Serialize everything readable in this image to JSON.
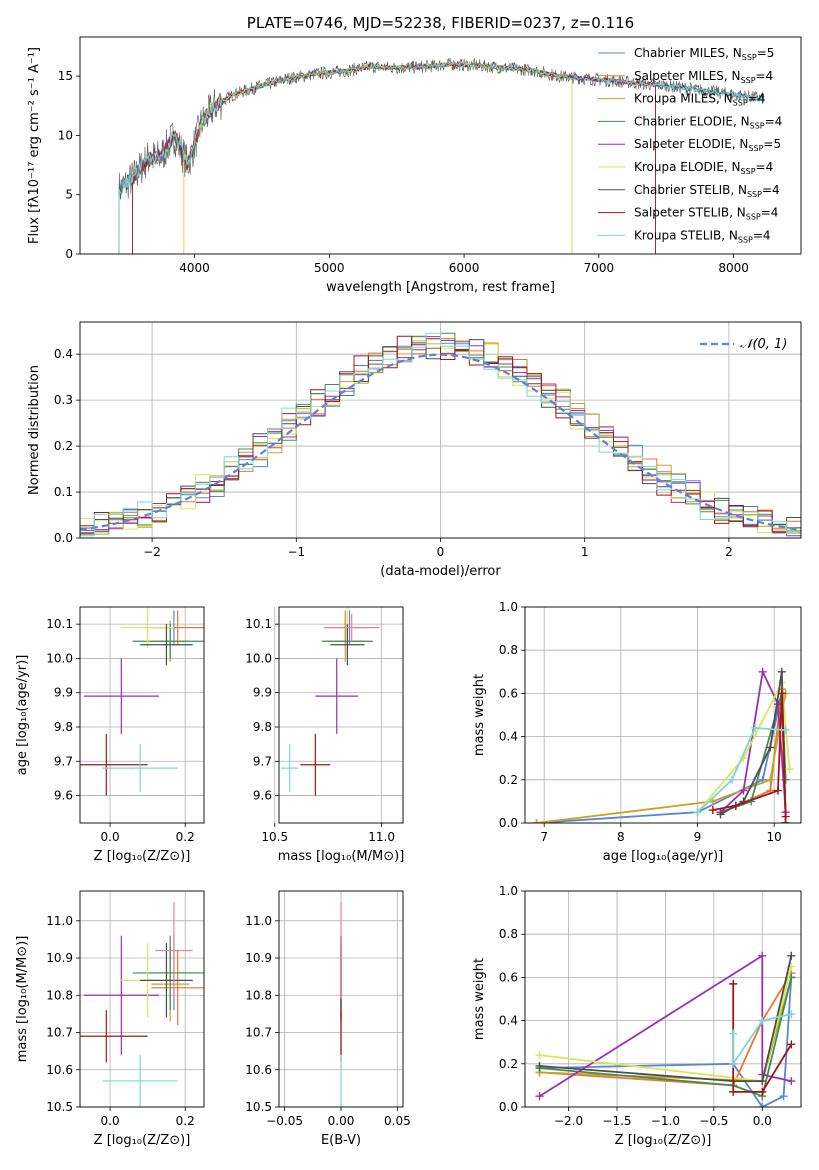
{
  "colors": {
    "chabrier_miles": "#5b84d6",
    "salpeter_miles": "#e8772e",
    "kroupa_miles": "#c9a227",
    "chabrier_elodie": "#3f8f55",
    "salpeter_elodie": "#9b2fb5",
    "kroupa_elodie": "#d7e85a",
    "chabrier_stelib": "#4d4d4d",
    "salpeter_stelib": "#a01818",
    "kroupa_stelib": "#7fd6d6",
    "data": "#555555",
    "pink": "#f07aa0"
  },
  "chart_data": [
    {
      "id": "spectrum",
      "type": "line",
      "title": "PLATE=0746, MJD=52238, FIBERID=0237, z=0.116",
      "xlabel": "wavelength [Angstrom, rest frame]",
      "ylabel": "Flux [fλ10⁻¹⁷ erg cm⁻² s⁻¹ A⁻¹]",
      "xlim": [
        3150,
        8500
      ],
      "ylim": [
        0,
        18.3
      ],
      "xticks": [
        "4000",
        "5000",
        "6000",
        "7000",
        "8000"
      ],
      "yticks": [
        "0",
        "5",
        "10",
        "15"
      ],
      "continuum": {
        "x": [
          3450,
          3550,
          3650,
          3750,
          3850,
          3950,
          4050,
          4150,
          4300,
          4500,
          4700,
          4900,
          5100,
          5300,
          5500,
          5700,
          5900,
          6100,
          6300,
          6500,
          6700,
          6900,
          7100,
          7300,
          7500,
          7700,
          7900,
          8100,
          8230
        ],
        "y": [
          5.5,
          6.5,
          8.0,
          8.2,
          10.0,
          7.5,
          11.0,
          12.5,
          13.5,
          14.2,
          14.8,
          15.2,
          15.4,
          15.8,
          15.7,
          15.8,
          16.0,
          15.9,
          15.7,
          15.5,
          15.0,
          14.8,
          14.6,
          14.4,
          14.2,
          13.9,
          13.6,
          13.3,
          13.1
        ]
      },
      "legend": [
        {
          "label": "Chabrier MILES, N",
          "sub": "SSP",
          "suffix": "=5"
        },
        {
          "label": "Salpeter MILES, N",
          "sub": "SSP",
          "suffix": "=4"
        },
        {
          "label": "Kroupa MILES, N",
          "sub": "SSP",
          "suffix": "=4"
        },
        {
          "label": "Chabrier ELODIE, N",
          "sub": "SSP",
          "suffix": "=4"
        },
        {
          "label": "Salpeter ELODIE, N",
          "sub": "SSP",
          "suffix": "=5"
        },
        {
          "label": "Kroupa ELODIE, N",
          "sub": "SSP",
          "suffix": "=4"
        },
        {
          "label": "Chabrier STELIB, N",
          "sub": "SSP",
          "suffix": "=4"
        },
        {
          "label": "Salpeter STELIB, N",
          "sub": "SSP",
          "suffix": "=4"
        },
        {
          "label": "Kroupa STELIB, N",
          "sub": "SSP",
          "suffix": "=4"
        }
      ]
    },
    {
      "id": "residuals",
      "type": "line",
      "xlabel": "(data-model)/error",
      "ylabel": "Normed distribution",
      "xlim": [
        -2.5,
        2.5
      ],
      "ylim": [
        0,
        0.47
      ],
      "xticks": [
        "−2",
        "−1",
        "0",
        "1",
        "2"
      ],
      "yticks": [
        "0.0",
        "0.1",
        "0.2",
        "0.3",
        "0.4"
      ],
      "legend_label": "𝒩(0, 1)",
      "gaussian": {
        "mean": 0,
        "sigma": 1
      },
      "bin_width": 0.1
    },
    {
      "id": "age_vs_Z",
      "type": "scatter",
      "xlabel": "Z [log₁₀(Z/Z⊙)]",
      "ylabel": "age [log₁₀(age/yr)]",
      "xlim": [
        -0.08,
        0.25
      ],
      "ylim": [
        9.52,
        10.15
      ],
      "xticks": [
        "0.0",
        "0.2"
      ],
      "yticks": [
        "9.6",
        "9.7",
        "9.8",
        "9.9",
        "10.0",
        "10.1"
      ],
      "points": [
        {
          "c": "chabrier_miles",
          "x": 0.17,
          "y": 10.09,
          "ex": 0.08,
          "ey": 0.05
        },
        {
          "c": "salpeter_miles",
          "x": 0.18,
          "y": 10.09,
          "ex": 0.07,
          "ey": 0.05
        },
        {
          "c": "kroupa_miles",
          "x": 0.16,
          "y": 10.05,
          "ex": 0.05,
          "ey": 0.06
        },
        {
          "c": "chabrier_elodie",
          "x": 0.16,
          "y": 10.05,
          "ex": 0.1,
          "ey": 0.05
        },
        {
          "c": "salpeter_elodie",
          "x": 0.03,
          "y": 9.89,
          "ex": 0.1,
          "ey": 0.11
        },
        {
          "c": "kroupa_elodie",
          "x": 0.1,
          "y": 10.09,
          "ex": 0.07,
          "ey": 0.06
        },
        {
          "c": "chabrier_stelib",
          "x": 0.15,
          "y": 10.04,
          "ex": 0.07,
          "ey": 0.06
        },
        {
          "c": "salpeter_stelib",
          "x": -0.01,
          "y": 9.69,
          "ex": 0.11,
          "ey": 0.09
        },
        {
          "c": "kroupa_stelib",
          "x": 0.08,
          "y": 9.68,
          "ex": 0.1,
          "ey": 0.07
        }
      ]
    },
    {
      "id": "age_vs_mass",
      "type": "scatter",
      "xlabel": "mass [log₁₀(M/M⊙)]",
      "xlim": [
        10.52,
        11.1
      ],
      "ylim": [
        9.52,
        10.15
      ],
      "xticks": [
        "10.5",
        "11.0"
      ],
      "yticks": [
        "9.6",
        "9.7",
        "9.8",
        "9.9",
        "10.0",
        "10.1"
      ],
      "points": [
        {
          "c": "chabrier_miles",
          "x": 10.85,
          "y": 10.09,
          "ex": 0.11,
          "ey": 0.05
        },
        {
          "c": "salpeter_miles",
          "x": 10.83,
          "y": 10.09,
          "ex": 0.1,
          "ey": 0.05
        },
        {
          "c": "kroupa_miles",
          "x": 10.83,
          "y": 10.05,
          "ex": 0.09,
          "ey": 0.06
        },
        {
          "c": "chabrier_elodie",
          "x": 10.84,
          "y": 10.05,
          "ex": 0.12,
          "ey": 0.05
        },
        {
          "c": "salpeter_elodie",
          "x": 10.79,
          "y": 9.89,
          "ex": 0.1,
          "ey": 0.11
        },
        {
          "c": "kroupa_elodie",
          "x": 10.84,
          "y": 10.09,
          "ex": 0.1,
          "ey": 0.06
        },
        {
          "c": "chabrier_stelib",
          "x": 10.84,
          "y": 10.04,
          "ex": 0.08,
          "ey": 0.06
        },
        {
          "c": "salpeter_stelib",
          "x": 10.69,
          "y": 9.69,
          "ex": 0.07,
          "ey": 0.09
        },
        {
          "c": "kroupa_stelib",
          "x": 10.57,
          "y": 9.68,
          "ex": 0.04,
          "ey": 0.07
        },
        {
          "c": "pink",
          "x": 10.86,
          "y": 10.09,
          "ex": 0.13,
          "ey": 0.04
        }
      ]
    },
    {
      "id": "weight_vs_age",
      "type": "line",
      "xlabel": "age [log₁₀(age/yr)]",
      "ylabel": "mass weight",
      "xlim": [
        6.75,
        10.35
      ],
      "ylim": [
        0,
        1.0
      ],
      "xticks": [
        "7",
        "8",
        "9",
        "10"
      ],
      "yticks": [
        "0.0",
        "0.2",
        "0.4",
        "0.6",
        "0.8",
        "1.0"
      ],
      "series": [
        {
          "c": "chabrier_miles",
          "x": [
            6.9,
            9.0,
            9.85,
            10.1,
            10.15
          ],
          "y": [
            0.0,
            0.05,
            0.2,
            0.6,
            0.0
          ]
        },
        {
          "c": "salpeter_miles",
          "x": [
            9.5,
            9.95,
            10.1,
            10.15
          ],
          "y": [
            0.08,
            0.15,
            0.62,
            0.0
          ]
        },
        {
          "c": "kroupa_miles",
          "x": [
            6.9,
            9.2,
            9.95,
            10.15
          ],
          "y": [
            0.0,
            0.1,
            0.2,
            0.6
          ]
        },
        {
          "c": "chabrier_elodie",
          "x": [
            9.3,
            9.7,
            10.1,
            10.15
          ],
          "y": [
            0.05,
            0.1,
            0.6,
            0.2
          ]
        },
        {
          "c": "salpeter_elodie",
          "x": [
            9.3,
            9.6,
            9.85,
            10.05,
            10.15
          ],
          "y": [
            0.05,
            0.15,
            0.7,
            0.55,
            0.05
          ]
        },
        {
          "c": "kroupa_elodie",
          "x": [
            9.0,
            9.6,
            10.1,
            10.2
          ],
          "y": [
            0.05,
            0.3,
            0.65,
            0.25
          ]
        },
        {
          "c": "chabrier_stelib",
          "x": [
            9.3,
            9.6,
            9.95,
            10.1,
            10.15
          ],
          "y": [
            0.04,
            0.1,
            0.35,
            0.7,
            0.0
          ]
        },
        {
          "c": "salpeter_stelib",
          "x": [
            9.2,
            9.5,
            10.05,
            10.1,
            10.15
          ],
          "y": [
            0.06,
            0.08,
            0.15,
            0.6,
            0.03
          ]
        },
        {
          "c": "kroupa_stelib",
          "x": [
            9.0,
            9.45,
            9.75,
            10.15
          ],
          "y": [
            0.05,
            0.2,
            0.44,
            0.43
          ]
        }
      ]
    },
    {
      "id": "mass_vs_Z",
      "type": "scatter",
      "xlabel": "Z [log₁₀(Z/Z⊙)]",
      "ylabel": "mass [log₁₀(M/M⊙)]",
      "xlim": [
        -0.08,
        0.25
      ],
      "ylim": [
        10.5,
        11.08
      ],
      "xticks": [
        "0.0",
        "0.2"
      ],
      "yticks": [
        "10.5",
        "10.6",
        "10.7",
        "10.8",
        "10.9",
        "11.0"
      ],
      "points": [
        {
          "c": "chabrier_miles",
          "x": 0.17,
          "y": 10.86,
          "ex": 0.07,
          "ey": 0.1
        },
        {
          "c": "salpeter_miles",
          "x": 0.18,
          "y": 10.82,
          "ex": 0.07,
          "ey": 0.1
        },
        {
          "c": "kroupa_miles",
          "x": 0.16,
          "y": 10.83,
          "ex": 0.05,
          "ey": 0.1
        },
        {
          "c": "chabrier_elodie",
          "x": 0.16,
          "y": 10.86,
          "ex": 0.1,
          "ey": 0.1
        },
        {
          "c": "salpeter_elodie",
          "x": 0.03,
          "y": 10.8,
          "ex": 0.1,
          "ey": 0.16
        },
        {
          "c": "kroupa_elodie",
          "x": 0.1,
          "y": 10.84,
          "ex": 0.07,
          "ey": 0.1
        },
        {
          "c": "chabrier_stelib",
          "x": 0.15,
          "y": 10.84,
          "ex": 0.07,
          "ey": 0.1
        },
        {
          "c": "salpeter_stelib",
          "x": -0.01,
          "y": 10.69,
          "ex": 0.11,
          "ey": 0.07
        },
        {
          "c": "kroupa_stelib",
          "x": 0.08,
          "y": 10.57,
          "ex": 0.1,
          "ey": 0.07
        },
        {
          "c": "pink",
          "x": 0.17,
          "y": 10.92,
          "ex": 0.05,
          "ey": 0.13
        }
      ]
    },
    {
      "id": "mass_vs_EBV",
      "type": "scatter",
      "xlabel": "E(B-V)",
      "xlim": [
        -0.055,
        0.055
      ],
      "ylim": [
        10.5,
        11.08
      ],
      "xticks": [
        "−0.05",
        "0.00",
        "0.05"
      ],
      "yticks": [
        "10.5",
        "10.6",
        "10.7",
        "10.8",
        "10.9",
        "11.0"
      ],
      "points": [
        {
          "c": "chabrier_miles",
          "x": 0.0,
          "y": 10.86,
          "ex": 0,
          "ey": 0.1
        },
        {
          "c": "salpeter_miles",
          "x": 0.0,
          "y": 10.82,
          "ex": 0,
          "ey": 0.1
        },
        {
          "c": "kroupa_miles",
          "x": 0.0,
          "y": 10.83,
          "ex": 0,
          "ey": 0.1
        },
        {
          "c": "chabrier_elodie",
          "x": 0.0,
          "y": 10.86,
          "ex": 0,
          "ey": 0.1
        },
        {
          "c": "salpeter_elodie",
          "x": 0.0,
          "y": 10.8,
          "ex": 0,
          "ey": 0.16
        },
        {
          "c": "kroupa_elodie",
          "x": 0.0,
          "y": 10.84,
          "ex": 0,
          "ey": 0.1
        },
        {
          "c": "chabrier_stelib",
          "x": 0.0,
          "y": 10.84,
          "ex": 0,
          "ey": 0.1
        },
        {
          "c": "salpeter_stelib",
          "x": 0.0,
          "y": 10.69,
          "ex": 0,
          "ey": 0.07
        },
        {
          "c": "kroupa_stelib",
          "x": 0.0,
          "y": 10.57,
          "ex": 0,
          "ey": 0.07
        },
        {
          "c": "pink",
          "x": 0.0,
          "y": 10.92,
          "ex": 0,
          "ey": 0.13
        }
      ]
    },
    {
      "id": "weight_vs_Z",
      "type": "line",
      "xlabel": "Z [log₁₀(Z/Z⊙)]",
      "ylabel": "mass weight",
      "xlim": [
        -2.45,
        0.4
      ],
      "ylim": [
        0,
        1.0
      ],
      "xticks": [
        "−2.0",
        "−1.5",
        "−1.0",
        "−0.5",
        "0.0"
      ],
      "yticks": [
        "0.0",
        "0.2",
        "0.4",
        "0.6",
        "0.8",
        "1.0"
      ],
      "series": [
        {
          "c": "chabrier_miles",
          "x": [
            -2.3,
            -0.3,
            0.0,
            0.22,
            0.3
          ],
          "y": [
            0.18,
            0.2,
            0.0,
            0.05,
            0.6
          ]
        },
        {
          "c": "salpeter_miles",
          "x": [
            -2.3,
            -0.3,
            0.0,
            0.3
          ],
          "y": [
            0.16,
            0.1,
            0.4,
            0.62
          ]
        },
        {
          "c": "kroupa_miles",
          "x": [
            -2.3,
            0.0,
            0.3
          ],
          "y": [
            0.16,
            0.12,
            0.6
          ]
        },
        {
          "c": "chabrier_elodie",
          "x": [
            -2.3,
            -0.3,
            0.0,
            0.3
          ],
          "y": [
            0.18,
            0.1,
            0.05,
            0.6
          ]
        },
        {
          "c": "salpeter_elodie",
          "x": [
            -2.3,
            0.0,
            0.0,
            0.3
          ],
          "y": [
            0.05,
            0.7,
            0.15,
            0.12
          ]
        },
        {
          "c": "kroupa_elodie",
          "x": [
            -2.3,
            0.0,
            0.3
          ],
          "y": [
            0.24,
            0.12,
            0.65
          ]
        },
        {
          "c": "chabrier_stelib",
          "x": [
            -2.3,
            -0.3,
            0.0,
            0.3
          ],
          "y": [
            0.19,
            0.12,
            0.12,
            0.7
          ]
        },
        {
          "c": "salpeter_stelib",
          "x": [
            -0.3,
            -0.3,
            0.0,
            0.3
          ],
          "y": [
            0.57,
            0.07,
            0.07,
            0.29
          ]
        },
        {
          "c": "kroupa_stelib",
          "x": [
            -0.3,
            -0.3,
            0.0,
            0.3
          ],
          "y": [
            0.34,
            0.2,
            0.4,
            0.43
          ]
        }
      ]
    }
  ]
}
